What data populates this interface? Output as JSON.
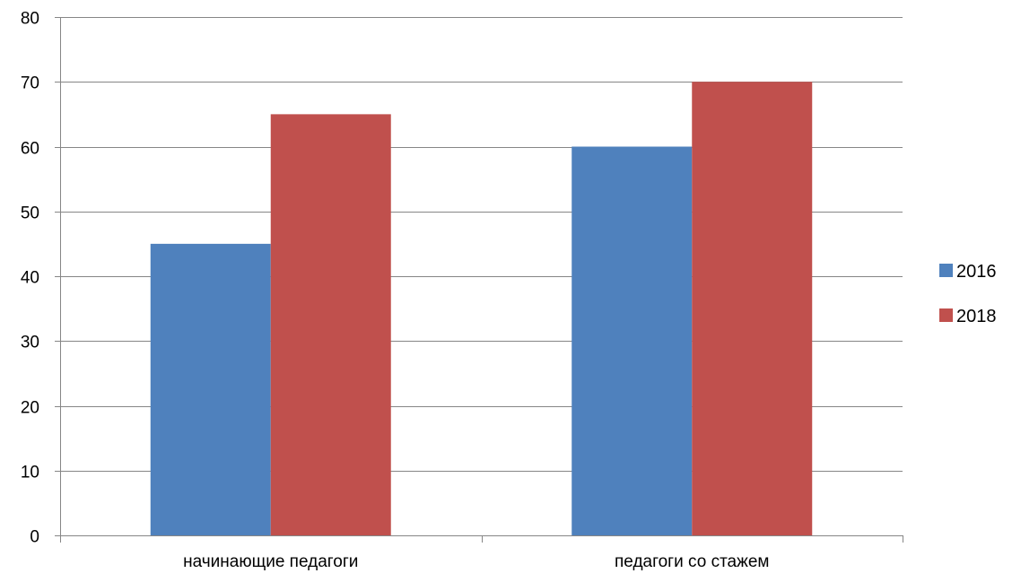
{
  "chart_data": {
    "type": "bar",
    "title": "",
    "xlabel": "",
    "ylabel": "",
    "categories": [
      "начинающие педагоги",
      "педагоги со стажем"
    ],
    "series": [
      {
        "name": "2016",
        "color": "#4F81BD",
        "values": [
          45,
          60
        ]
      },
      {
        "name": "2018",
        "color": "#C0504D",
        "values": [
          65,
          70
        ]
      }
    ],
    "ylim": [
      0,
      80
    ],
    "yticks": [
      0,
      10,
      20,
      30,
      40,
      50,
      60,
      70,
      80
    ],
    "grid": true,
    "legend_position": "right",
    "colors": {
      "gridline": "#868686",
      "axis": "#868686",
      "text": "#000000"
    }
  }
}
